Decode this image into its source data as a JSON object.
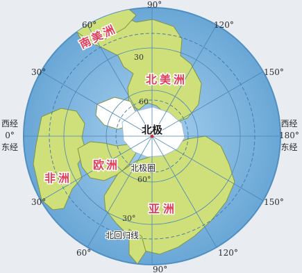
{
  "map": {
    "center_label": "北极",
    "continents": {
      "north_america": "北美洲",
      "south_america": "南美洲",
      "europe": "欧洲",
      "africa": "非洲",
      "asia": "亚洲"
    },
    "circle_labels": {
      "arctic_circle": "北极圈",
      "tropic_of_cancer": "北回归线"
    },
    "latitude_labels": {
      "lat60_upper": "60",
      "lat60_lower": "60°",
      "lat30_upper": "30",
      "lat30_lower": "30°"
    },
    "meridian_labels": {
      "top": "90°",
      "bottom": "90°",
      "upper_left_60": "60°",
      "upper_left_30": "30°",
      "upper_right_120": "120°",
      "upper_right_150": "150°",
      "lower_left_30": "30°",
      "lower_left_60": "60°",
      "lower_right_150": "150°",
      "lower_right_120": "120°"
    },
    "left_edge": {
      "west": "西经",
      "degree": "0°",
      "east": "东经"
    },
    "right_edge": {
      "west": "西经",
      "degree": "180°",
      "east": "东经"
    },
    "colors": {
      "ocean": "#7fb6dc",
      "ocean_edge": "#5f9bc8",
      "land": "#cfe07a",
      "land_edge": "#7d9446",
      "polar_ice": "#ffffff",
      "grid": "#4a84b6",
      "continent_label": "#e0405c",
      "label_outline": "#ffffff"
    }
  }
}
